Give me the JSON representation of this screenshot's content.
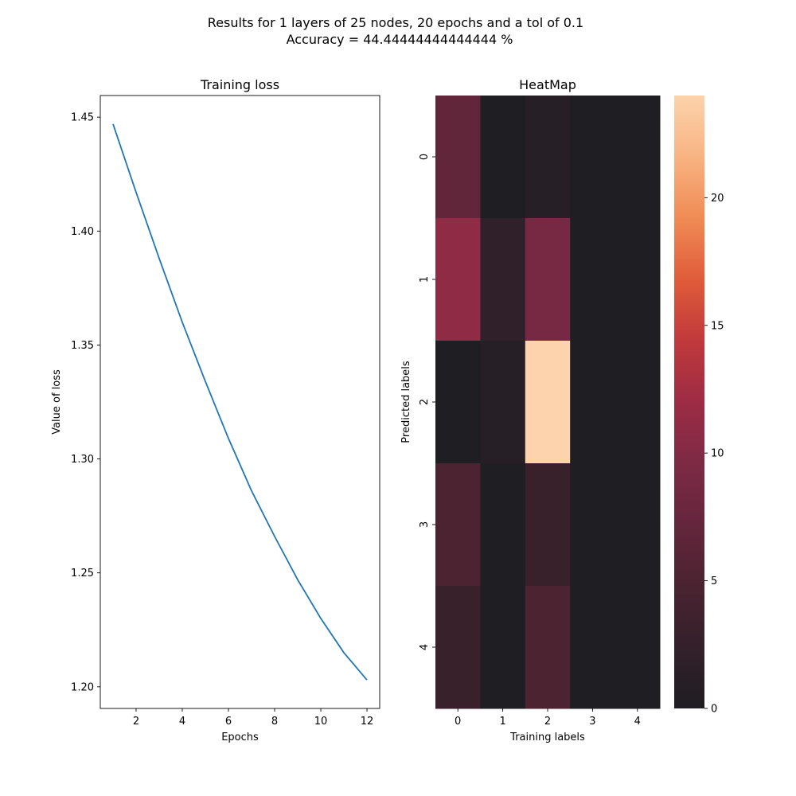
{
  "figure": {
    "title_line1": "Results for 1 layers of 25 nodes, 20 epochs and a tol of 0.1",
    "title_line2": "Accuracy = 44.44444444444444 %"
  },
  "chart_data": [
    {
      "type": "line",
      "title": "Training loss",
      "xlabel": "Epochs",
      "ylabel": "Value of loss",
      "x": [
        1,
        2,
        3,
        4,
        5,
        6,
        7,
        8,
        9,
        10,
        11,
        12
      ],
      "series": [
        {
          "values": [
            1.447,
            1.417,
            1.388,
            1.36,
            1.334,
            1.309,
            1.286,
            1.266,
            1.247,
            1.23,
            1.215,
            1.203
          ],
          "color": "#1f77b4"
        }
      ],
      "xlim": [
        0.45,
        12.55
      ],
      "ylim": [
        1.1905,
        1.4595
      ],
      "xticks": [
        2,
        4,
        6,
        8,
        10,
        12
      ],
      "yticks": [
        1.2,
        1.25,
        1.3,
        1.35,
        1.4,
        1.45
      ],
      "ytick_labels": [
        "1.20",
        "1.25",
        "1.30",
        "1.35",
        "1.40",
        "1.45"
      ],
      "grid": false
    },
    {
      "type": "heatmap",
      "title": "HeatMap",
      "xlabel": "Training labels",
      "ylabel": "Predicted labels",
      "x_categories": [
        "0",
        "1",
        "2",
        "3",
        "4"
      ],
      "y_categories": [
        "0",
        "1",
        "2",
        "3",
        "4"
      ],
      "values": [
        [
          7,
          0,
          1,
          0,
          0
        ],
        [
          11,
          2,
          9,
          0,
          0
        ],
        [
          0,
          1,
          24,
          0,
          0
        ],
        [
          5,
          0,
          3,
          0,
          0
        ],
        [
          3,
          0,
          5,
          0,
          0
        ]
      ],
      "colorbar": {
        "vmin": 0,
        "vmax": 24,
        "ticks": [
          0,
          5,
          10,
          15,
          20
        ],
        "colormap": "rocket"
      }
    }
  ]
}
